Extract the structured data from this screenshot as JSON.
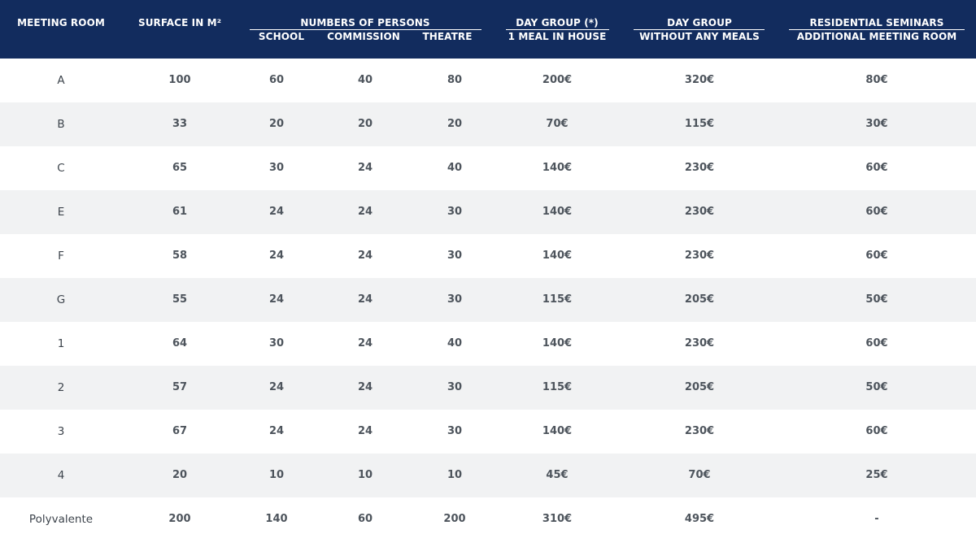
{
  "headers": {
    "meeting_room": "MEETING ROOM",
    "surface": "SURFACE IN M²",
    "persons_group": "NUMBERS OF PERSONS",
    "school": "SCHOOL",
    "commission": "COMMISSION",
    "theatre": "THEATRE",
    "day_group_meal_1": "DAY GROUP (*)",
    "day_group_meal_2": "1 MEAL IN HOUSE",
    "day_group_nomeal_1": "DAY GROUP",
    "day_group_nomeal_2": "WITHOUT ANY MEALS",
    "residential_1": "RESIDENTIAL SEMINARS",
    "residential_2": "ADDITIONAL MEETING ROOM"
  },
  "rows": [
    [
      "A",
      "100",
      "60",
      "40",
      "80",
      "200€",
      "320€",
      "80€"
    ],
    [
      "B",
      "33",
      "20",
      "20",
      "20",
      "70€",
      "115€",
      "30€"
    ],
    [
      "C",
      "65",
      "30",
      "24",
      "40",
      "140€",
      "230€",
      "60€"
    ],
    [
      "E",
      "61",
      "24",
      "24",
      "30",
      "140€",
      "230€",
      "60€"
    ],
    [
      "F",
      "58",
      "24",
      "24",
      "30",
      "140€",
      "230€",
      "60€"
    ],
    [
      "G",
      "55",
      "24",
      "24",
      "30",
      "115€",
      "205€",
      "50€"
    ],
    [
      "1",
      "64",
      "30",
      "24",
      "40",
      "140€",
      "230€",
      "60€"
    ],
    [
      "2",
      "57",
      "24",
      "24",
      "30",
      "115€",
      "205€",
      "50€"
    ],
    [
      "3",
      "67",
      "24",
      "24",
      "30",
      "140€",
      "230€",
      "60€"
    ],
    [
      "4",
      "20",
      "10",
      "10",
      "10",
      "45€",
      "70€",
      "25€"
    ],
    [
      "Polyvalente",
      "200",
      "140",
      "60",
      "200",
      "310€",
      "495€",
      "-"
    ]
  ]
}
